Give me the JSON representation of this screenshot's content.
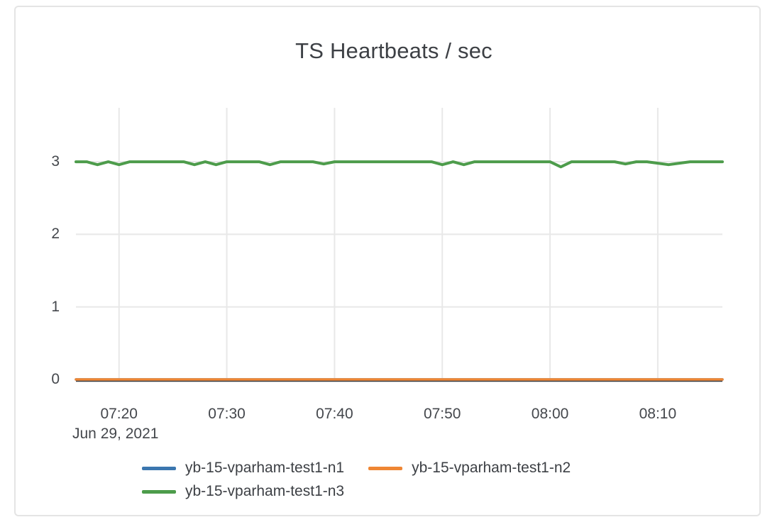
{
  "page": {
    "background": "#ffffff"
  },
  "card": {
    "border_color": "#e4e4e4"
  },
  "colors": {
    "grid": "#e8e8e8",
    "zeroline": "#36383c",
    "tick_text": "#44474c",
    "title_text": "#3d4045"
  },
  "chart_data": {
    "type": "line",
    "title": "TS Heartbeats / sec",
    "xlabel": "",
    "ylabel": "",
    "grid": true,
    "legend_position": "bottom",
    "x_axis": {
      "date_label": "Jun 29, 2021",
      "ticks": [
        "07:20",
        "07:30",
        "07:40",
        "07:50",
        "08:00",
        "08:10"
      ]
    },
    "y_axis": {
      "ticks": [
        0,
        1,
        2,
        3
      ],
      "range": [
        0,
        3.744
      ]
    },
    "x": [
      "07:16",
      "07:17",
      "07:18",
      "07:19",
      "07:20",
      "07:21",
      "07:22",
      "07:23",
      "07:24",
      "07:25",
      "07:26",
      "07:27",
      "07:28",
      "07:29",
      "07:30",
      "07:31",
      "07:32",
      "07:33",
      "07:34",
      "07:35",
      "07:36",
      "07:37",
      "07:38",
      "07:39",
      "07:40",
      "07:41",
      "07:42",
      "07:43",
      "07:44",
      "07:45",
      "07:46",
      "07:47",
      "07:48",
      "07:49",
      "07:50",
      "07:51",
      "07:52",
      "07:53",
      "07:54",
      "07:55",
      "07:56",
      "07:57",
      "07:58",
      "07:59",
      "08:00",
      "08:01",
      "08:02",
      "08:03",
      "08:04",
      "08:05",
      "08:06",
      "08:07",
      "08:08",
      "08:09",
      "08:10",
      "08:11",
      "08:12",
      "08:13",
      "08:14",
      "08:15",
      "08:16"
    ],
    "series": [
      {
        "name": "yb-15-vparham-test1-n1",
        "color": "#3b76af",
        "line_width": 3.5,
        "values": [
          0,
          0,
          0,
          0,
          0,
          0,
          0,
          0,
          0,
          0,
          0,
          0,
          0,
          0,
          0,
          0,
          0,
          0,
          0,
          0,
          0,
          0,
          0,
          0,
          0,
          0,
          0,
          0,
          0,
          0,
          0,
          0,
          0,
          0,
          0,
          0,
          0,
          0,
          0,
          0,
          0,
          0,
          0,
          0,
          0,
          0,
          0,
          0,
          0,
          0,
          0,
          0,
          0,
          0,
          0,
          0,
          0,
          0,
          0,
          0,
          0
        ]
      },
      {
        "name": "yb-15-vparham-test1-n2",
        "color": "#ef8633",
        "line_width": 3.5,
        "values": [
          0,
          0,
          0,
          0,
          0,
          0,
          0,
          0,
          0,
          0,
          0,
          0,
          0,
          0,
          0,
          0,
          0,
          0,
          0,
          0,
          0,
          0,
          0,
          0,
          0,
          0,
          0,
          0,
          0,
          0,
          0,
          0,
          0,
          0,
          0,
          0,
          0,
          0,
          0,
          0,
          0,
          0,
          0,
          0,
          0,
          0,
          0,
          0,
          0,
          0,
          0,
          0,
          0,
          0,
          0,
          0,
          0,
          0,
          0,
          0,
          0
        ]
      },
      {
        "name": "yb-15-vparham-test1-n3",
        "color": "#4d9c4b",
        "line_width": 4,
        "values": [
          3,
          3,
          2.96,
          3,
          2.96,
          3,
          3,
          3,
          3,
          3,
          3,
          2.96,
          3,
          2.96,
          3,
          3,
          3,
          3,
          2.96,
          3,
          3,
          3,
          3,
          2.97,
          3,
          3,
          3,
          3,
          3,
          3,
          3,
          3,
          3,
          3,
          2.96,
          3,
          2.96,
          3,
          3,
          3,
          3,
          3,
          3,
          3,
          3,
          2.93,
          3,
          3,
          3,
          3,
          3,
          2.97,
          3,
          3,
          2.98,
          2.96,
          2.98,
          3,
          3,
          3,
          3
        ]
      }
    ]
  }
}
